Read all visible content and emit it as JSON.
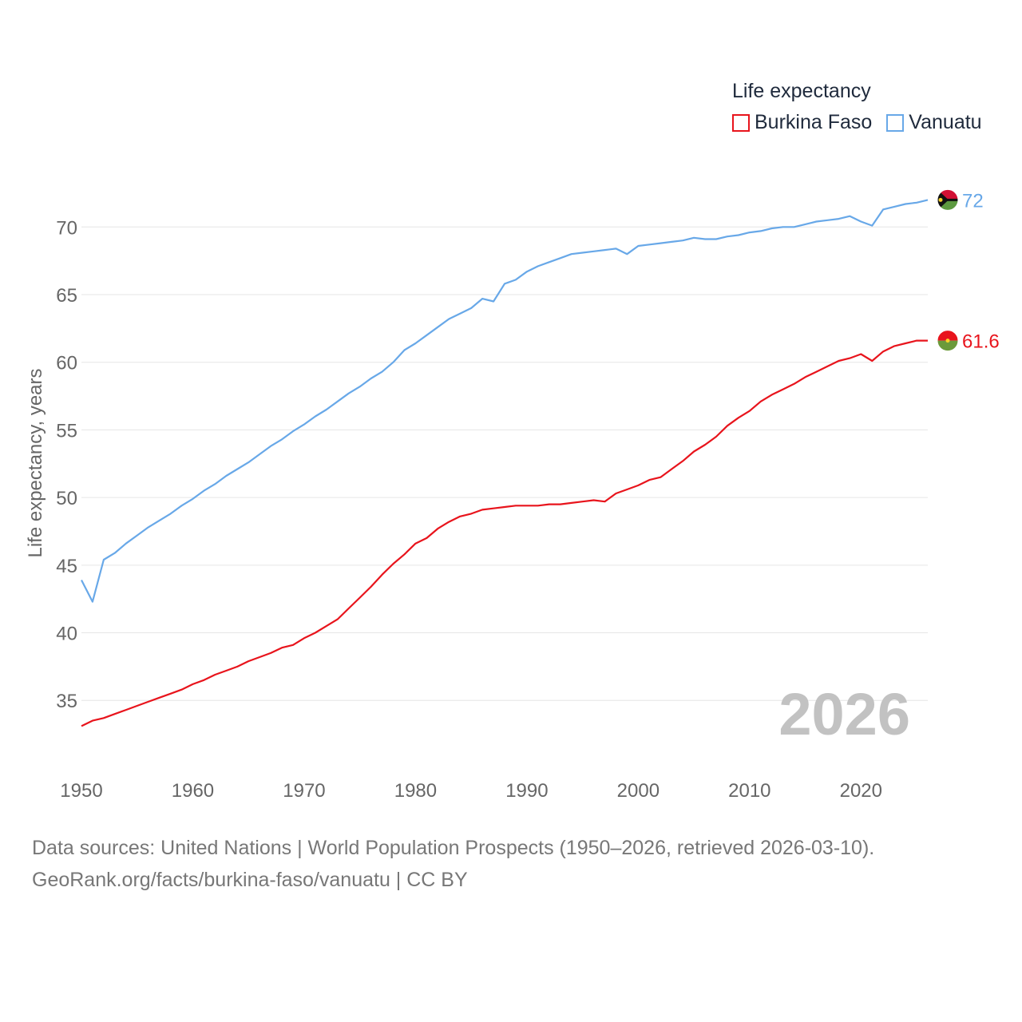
{
  "chart_data": {
    "type": "line",
    "title": "Life expectancy",
    "ylabel": "Life expectancy, years",
    "xlabel": "",
    "xlim": [
      1950,
      2026
    ],
    "ylim": [
      31,
      73.5
    ],
    "x_ticks": [
      1950,
      1960,
      1970,
      1980,
      1990,
      2000,
      2010,
      2020
    ],
    "y_ticks": [
      35,
      40,
      45,
      50,
      55,
      60,
      65,
      70
    ],
    "grid": true,
    "legend_position": "top-right",
    "watermark_year": "2026",
    "x": [
      1950,
      1951,
      1952,
      1953,
      1954,
      1955,
      1956,
      1957,
      1958,
      1959,
      1960,
      1961,
      1962,
      1963,
      1964,
      1965,
      1966,
      1967,
      1968,
      1969,
      1970,
      1971,
      1972,
      1973,
      1974,
      1975,
      1976,
      1977,
      1978,
      1979,
      1980,
      1981,
      1982,
      1983,
      1984,
      1985,
      1986,
      1987,
      1988,
      1989,
      1990,
      1991,
      1992,
      1993,
      1994,
      1995,
      1996,
      1997,
      1998,
      1999,
      2000,
      2001,
      2002,
      2003,
      2004,
      2005,
      2006,
      2007,
      2008,
      2009,
      2010,
      2011,
      2012,
      2013,
      2014,
      2015,
      2016,
      2017,
      2018,
      2019,
      2020,
      2021,
      2022,
      2023,
      2024,
      2025,
      2026
    ],
    "series": [
      {
        "name": "Burkina Faso",
        "color": "#e8141c",
        "flag": "burkina-faso-flag-icon",
        "end_label": "61.6",
        "values": [
          33.1,
          33.5,
          33.7,
          34.0,
          34.3,
          34.6,
          34.9,
          35.2,
          35.5,
          35.8,
          36.2,
          36.5,
          36.9,
          37.2,
          37.5,
          37.9,
          38.2,
          38.5,
          38.9,
          39.1,
          39.6,
          40.0,
          40.5,
          41.0,
          41.8,
          42.6,
          43.4,
          44.3,
          45.1,
          45.8,
          46.6,
          47.0,
          47.7,
          48.2,
          48.6,
          48.8,
          49.1,
          49.2,
          49.3,
          49.4,
          49.4,
          49.4,
          49.5,
          49.5,
          49.6,
          49.7,
          49.8,
          49.7,
          50.3,
          50.6,
          50.9,
          51.3,
          51.5,
          52.1,
          52.7,
          53.4,
          53.9,
          54.5,
          55.3,
          55.9,
          56.4,
          57.1,
          57.6,
          58.0,
          58.4,
          58.9,
          59.3,
          59.7,
          60.1,
          60.3,
          60.6,
          60.1,
          60.8,
          61.2,
          61.4,
          61.6,
          61.6
        ]
      },
      {
        "name": "Vanuatu",
        "color": "#68a8e8",
        "flag": "vanuatu-flag-icon",
        "end_label": "72",
        "values": [
          43.9,
          42.3,
          45.4,
          45.9,
          46.6,
          47.2,
          47.8,
          48.3,
          48.8,
          49.4,
          49.9,
          50.5,
          51.0,
          51.6,
          52.1,
          52.6,
          53.2,
          53.8,
          54.3,
          54.9,
          55.4,
          56.0,
          56.5,
          57.1,
          57.7,
          58.2,
          58.8,
          59.3,
          60.0,
          60.9,
          61.4,
          62.0,
          62.6,
          63.2,
          63.6,
          64.0,
          64.7,
          64.5,
          65.8,
          66.1,
          66.7,
          67.1,
          67.4,
          67.7,
          68.0,
          68.1,
          68.2,
          68.3,
          68.4,
          68.0,
          68.6,
          68.7,
          68.8,
          68.9,
          69.0,
          69.2,
          69.1,
          69.1,
          69.3,
          69.4,
          69.6,
          69.7,
          69.9,
          70.0,
          70.0,
          70.2,
          70.4,
          70.5,
          70.6,
          70.8,
          70.4,
          70.1,
          71.3,
          71.5,
          71.7,
          71.8,
          72.0
        ]
      }
    ]
  },
  "legend": {
    "title": "Life expectancy",
    "items": [
      "Burkina Faso",
      "Vanuatu"
    ]
  },
  "sources": {
    "line1": "Data sources: United Nations | World Population Prospects (1950–2026, retrieved 2026-03-10).",
    "line2": "GeoRank.org/facts/burkina-faso/vanuatu | CC BY"
  }
}
